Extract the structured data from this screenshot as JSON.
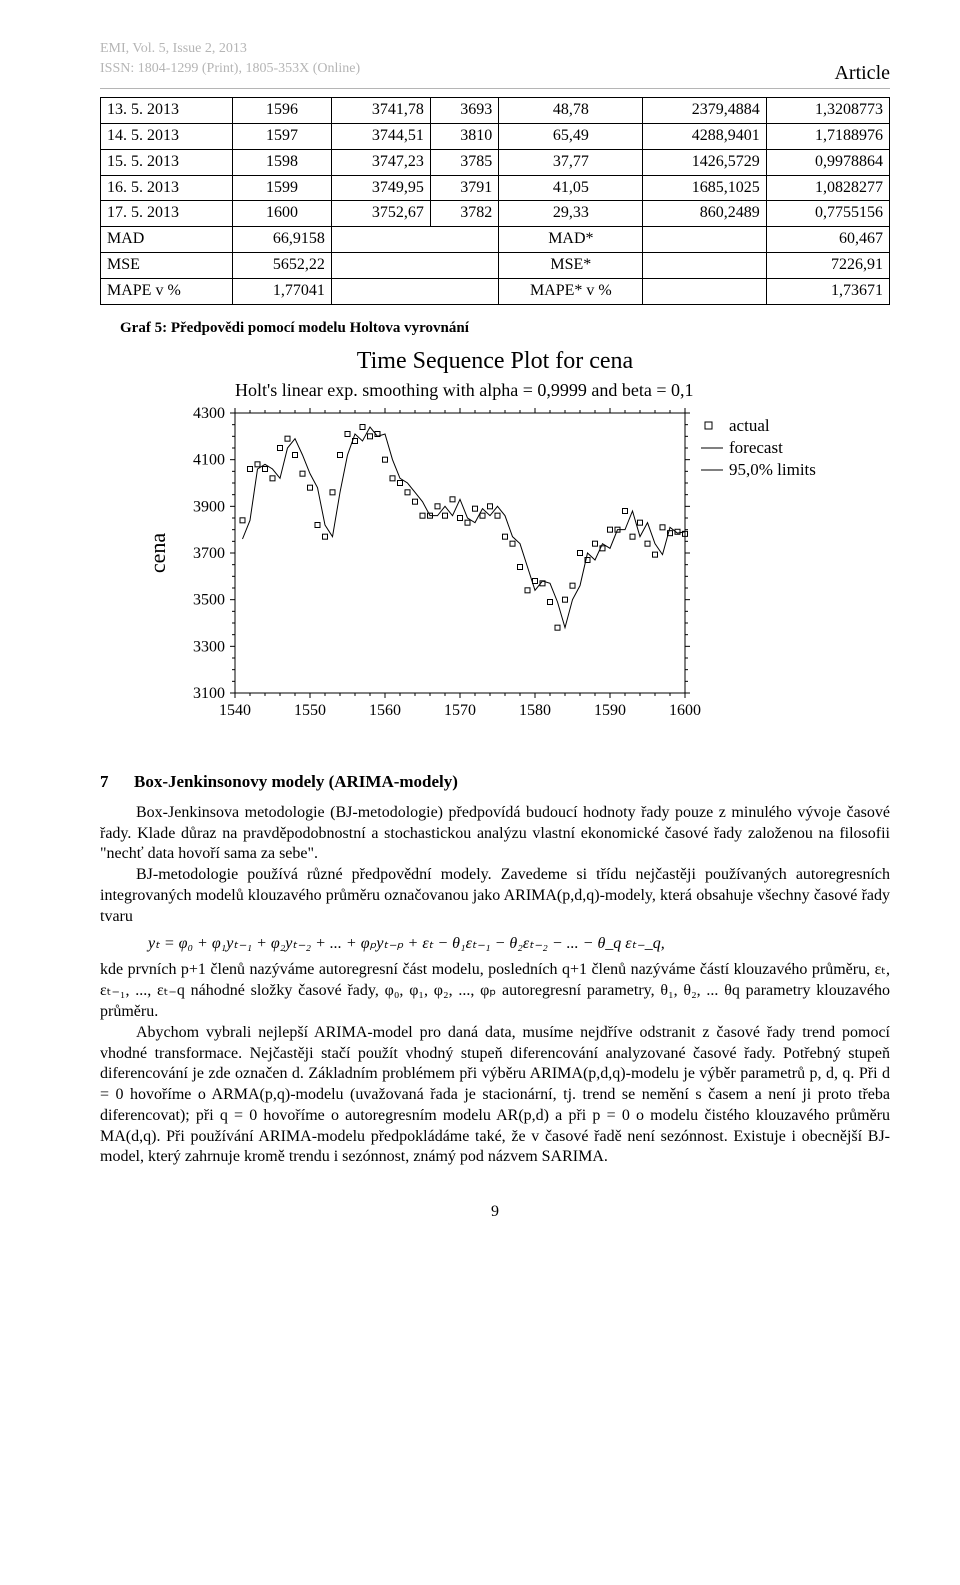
{
  "header": {
    "journal": "EMI, Vol. 5, Issue 2, 2013",
    "issn": "ISSN: 1804-1299 (Print), 1805-353X (Online)",
    "article_label": "Article"
  },
  "table": {
    "columns": [
      "label",
      "c1",
      "c2",
      "c3",
      "c4",
      "c5",
      "c6"
    ],
    "rows": [
      [
        "13. 5. 2013",
        "1596",
        "3741,78",
        "3693",
        "48,78",
        "2379,4884",
        "1,3208773"
      ],
      [
        "14. 5. 2013",
        "1597",
        "3744,51",
        "3810",
        "65,49",
        "4288,9401",
        "1,7188976"
      ],
      [
        "15. 5. 2013",
        "1598",
        "3747,23",
        "3785",
        "37,77",
        "1426,5729",
        "0,9978864"
      ],
      [
        "16. 5. 2013",
        "1599",
        "3749,95",
        "3791",
        "41,05",
        "1685,1025",
        "1,0828277"
      ],
      [
        "17. 5. 2013",
        "1600",
        "3752,67",
        "3782",
        "29,33",
        "860,2489",
        "0,7755156"
      ]
    ],
    "summary": [
      [
        "MAD",
        "66,9158",
        "MAD*",
        "60,467"
      ],
      [
        "MSE",
        "5652,22",
        "MSE*",
        "7226,91"
      ],
      [
        "MAPE v %",
        "1,77041",
        "MAPE* v %",
        "1,73671"
      ]
    ]
  },
  "graf_caption": "Graf 5: Předpovědi pomocí modelu Holtova vyrovnání",
  "chart": {
    "title": "Time Sequence Plot for cena",
    "subtitle": "Holt's linear exp. smoothing with alpha = 0,9999 and beta = 0,1",
    "ylabel": "cena",
    "xlabel": "",
    "ylim": [
      3100,
      4300
    ],
    "ytick_step": 200,
    "yticks": [
      3100,
      3300,
      3500,
      3700,
      3900,
      4100,
      4300
    ],
    "xlim": [
      1540,
      1600
    ],
    "xtick_step": 10,
    "xticks": [
      1540,
      1550,
      1560,
      1570,
      1580,
      1590,
      1600
    ],
    "background_color": "#ffffff",
    "axis_color": "#000000",
    "grid_color": "#000000",
    "tick_fontsize": 16,
    "title_fontsize": 22,
    "subtitle_fontsize": 17,
    "ylabel_fontsize": 22,
    "legend": {
      "position": "right",
      "items": [
        {
          "label": "actual",
          "type": "marker",
          "marker": "square-open",
          "color": "#000000"
        },
        {
          "label": "forecast",
          "type": "line",
          "color": "#000000"
        },
        {
          "label": "95,0% limits",
          "type": "line",
          "color": "#000000"
        }
      ]
    },
    "series_actual": {
      "color": "#000000",
      "marker": "square-open",
      "marker_size": 5,
      "points": [
        [
          1541,
          3840
        ],
        [
          1542,
          4060
        ],
        [
          1543,
          4080
        ],
        [
          1544,
          4060
        ],
        [
          1545,
          4020
        ],
        [
          1546,
          4150
        ],
        [
          1547,
          4190
        ],
        [
          1548,
          4120
        ],
        [
          1549,
          4040
        ],
        [
          1550,
          3980
        ],
        [
          1551,
          3820
        ],
        [
          1552,
          3770
        ],
        [
          1553,
          3960
        ],
        [
          1554,
          4120
        ],
        [
          1555,
          4210
        ],
        [
          1556,
          4180
        ],
        [
          1557,
          4240
        ],
        [
          1558,
          4200
        ],
        [
          1559,
          4210
        ],
        [
          1560,
          4100
        ],
        [
          1561,
          4020
        ],
        [
          1562,
          4000
        ],
        [
          1563,
          3960
        ],
        [
          1564,
          3920
        ],
        [
          1565,
          3860
        ],
        [
          1566,
          3860
        ],
        [
          1567,
          3900
        ],
        [
          1568,
          3860
        ],
        [
          1569,
          3930
        ],
        [
          1570,
          3850
        ],
        [
          1571,
          3830
        ],
        [
          1572,
          3890
        ],
        [
          1573,
          3860
        ],
        [
          1574,
          3900
        ],
        [
          1575,
          3860
        ],
        [
          1576,
          3770
        ],
        [
          1577,
          3740
        ],
        [
          1578,
          3640
        ],
        [
          1579,
          3540
        ],
        [
          1580,
          3580
        ],
        [
          1581,
          3570
        ],
        [
          1582,
          3490
        ],
        [
          1583,
          3380
        ],
        [
          1584,
          3500
        ],
        [
          1585,
          3560
        ],
        [
          1586,
          3700
        ],
        [
          1587,
          3670
        ],
        [
          1588,
          3740
        ],
        [
          1589,
          3720
        ],
        [
          1590,
          3800
        ],
        [
          1591,
          3800
        ],
        [
          1592,
          3880
        ],
        [
          1593,
          3770
        ],
        [
          1594,
          3830
        ],
        [
          1595,
          3740
        ],
        [
          1596,
          3693
        ],
        [
          1597,
          3810
        ],
        [
          1598,
          3785
        ],
        [
          1599,
          3791
        ],
        [
          1600,
          3782
        ]
      ]
    },
    "series_forecast": {
      "color": "#000000",
      "line_width": 1,
      "points": [
        [
          1541,
          3760
        ],
        [
          1542,
          3840
        ],
        [
          1543,
          4060
        ],
        [
          1544,
          4080
        ],
        [
          1545,
          4060
        ],
        [
          1546,
          4020
        ],
        [
          1547,
          4150
        ],
        [
          1548,
          4190
        ],
        [
          1549,
          4120
        ],
        [
          1550,
          4040
        ],
        [
          1551,
          3980
        ],
        [
          1552,
          3820
        ],
        [
          1553,
          3770
        ],
        [
          1554,
          3960
        ],
        [
          1555,
          4120
        ],
        [
          1556,
          4210
        ],
        [
          1557,
          4180
        ],
        [
          1558,
          4240
        ],
        [
          1559,
          4200
        ],
        [
          1560,
          4210
        ],
        [
          1561,
          4100
        ],
        [
          1562,
          4020
        ],
        [
          1563,
          4000
        ],
        [
          1564,
          3960
        ],
        [
          1565,
          3920
        ],
        [
          1566,
          3860
        ],
        [
          1567,
          3860
        ],
        [
          1568,
          3900
        ],
        [
          1569,
          3860
        ],
        [
          1570,
          3930
        ],
        [
          1571,
          3850
        ],
        [
          1572,
          3830
        ],
        [
          1573,
          3890
        ],
        [
          1574,
          3860
        ],
        [
          1575,
          3900
        ],
        [
          1576,
          3860
        ],
        [
          1577,
          3770
        ],
        [
          1578,
          3740
        ],
        [
          1579,
          3640
        ],
        [
          1580,
          3540
        ],
        [
          1581,
          3580
        ],
        [
          1582,
          3570
        ],
        [
          1583,
          3490
        ],
        [
          1584,
          3380
        ],
        [
          1585,
          3500
        ],
        [
          1586,
          3560
        ],
        [
          1587,
          3700
        ],
        [
          1588,
          3670
        ],
        [
          1589,
          3740
        ],
        [
          1590,
          3720
        ],
        [
          1591,
          3800
        ],
        [
          1592,
          3800
        ],
        [
          1593,
          3880
        ],
        [
          1594,
          3770
        ],
        [
          1595,
          3830
        ],
        [
          1596,
          3740
        ],
        [
          1597,
          3693
        ],
        [
          1598,
          3810
        ],
        [
          1599,
          3785
        ],
        [
          1600,
          3791
        ]
      ]
    }
  },
  "section": {
    "number": "7",
    "title": "Box-Jenkinsonovy modely (ARIMA-modely)"
  },
  "body": {
    "p1": "Box-Jenkinsova metodologie (BJ-metodologie) předpovídá budoucí hodnoty řady pouze z minulého vývoje časové řady. Klade důraz na pravděpodobnostní a stochastickou analýzu vlastní ekonomické časové řady založenou na filosofii \"nechť data hovoří sama za sebe\".",
    "p2": "BJ-metodologie používá různé předpovědní modely. Zavedeme si třídu nejčastěji používaných autoregresních integrovaných modelů klouzavého průměru označovanou jako ARIMA(p,d,q)-modely, která obsahuje všechny časové řady tvaru",
    "formula": "yₜ = φ₀ + φ₁yₜ₋₁ + φ₂yₜ₋₂ + ... + φₚyₜ₋ₚ + εₜ − θ₁εₜ₋₁ − θ₂εₜ₋₂ − ... − θ_q εₜ₋_q,",
    "p3": "kde prvních p+1 členů nazýváme autoregresní část modelu, posledních q+1 členů nazýváme částí klouzavého průměru, εₜ, εₜ₋₁, ..., εₜ₋q náhodné složky časové řady, φ₀, φ₁, φ₂, ..., φₚ autoregresní parametry, θ₁, θ₂, ... θq parametry klouzavého průměru.",
    "p4": "Abychom vybrali nejlepší ARIMA-model pro daná data, musíme nejdříve odstranit z časové řady trend pomocí vhodné transformace. Nejčastěji stačí použít vhodný stupeň diferencování analyzované časové řady. Potřebný stupeň diferencování je zde označen d. Základním problémem při výběru ARIMA(p,d,q)-modelu je výběr parametrů p, d, q. Při d = 0 hovoříme o ARMA(p,q)-modelu (uvažovaná řada je stacionární, tj. trend se nemění s časem a není ji proto třeba diferencovat); při q = 0 hovoříme o autoregresním modelu AR(p,d) a při p = 0 o modelu čistého klouzavého průměru MA(d,q). Při používání ARIMA-modelu předpokládáme také, že v časové řadě není sezónnost. Existuje i obecnější BJ-model, který zahrnuje kromě trendu i sezónnost, známý pod názvem SARIMA."
  },
  "page_number": "9"
}
